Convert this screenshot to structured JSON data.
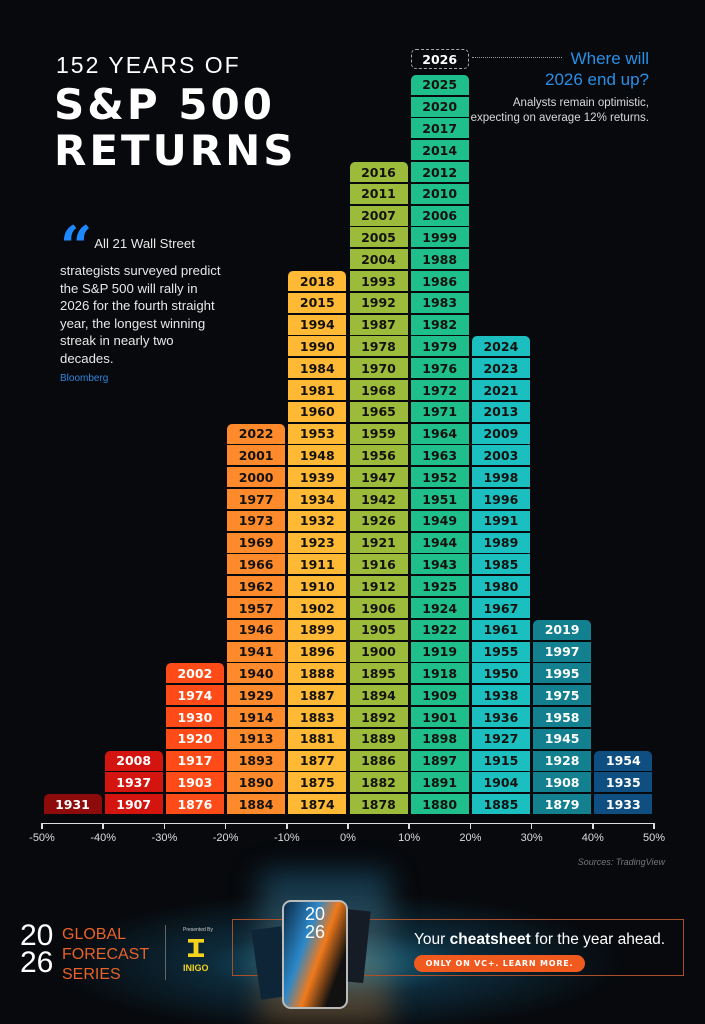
{
  "title": {
    "line1": "152 YEARS OF",
    "line2": "S&P 500",
    "line3": "RETURNS"
  },
  "quote": {
    "icon": "quote-icon",
    "text": "All 21 Wall Street strategists surveyed predict the S&P 500 will rally in 2026 for the fourth straight year, the longest winning streak in nearly two decades.",
    "source": "Bloomberg"
  },
  "callout": {
    "heading": "Where will 2026 end up?",
    "text": "Analysts remain optimistic, expecting on average 12% returns."
  },
  "sources": "Sources: TradingView",
  "chart_data": {
    "type": "histogram",
    "title": "152 YEARS OF S&P 500 RETURNS",
    "x_tick_labels": [
      "-50%",
      "-40%",
      "-30%",
      "-20%",
      "-10%",
      "0%",
      "10%",
      "20%",
      "30%",
      "40%",
      "50%"
    ],
    "xlim": [
      -50,
      50
    ],
    "grid": false,
    "projected": {
      "year": "2026",
      "bin": [
        10,
        20
      ]
    },
    "bins": [
      {
        "range": [
          -50,
          -40
        ],
        "color": "#8e0b0b",
        "text_color": "#ffffff",
        "years": [
          "1931"
        ]
      },
      {
        "range": [
          -40,
          -30
        ],
        "color": "#d3140f",
        "text_color": "#ffffff",
        "years": [
          "2008",
          "1937",
          "1907"
        ]
      },
      {
        "range": [
          -30,
          -20
        ],
        "color": "#ff4b17",
        "text_color": "#ffffff",
        "years": [
          "2002",
          "1974",
          "1930",
          "1920",
          "1917",
          "1903",
          "1876"
        ]
      },
      {
        "range": [
          -20,
          -10
        ],
        "color": "#ff8a2b",
        "text_color": "#14120e",
        "years": [
          "2022",
          "2001",
          "2000",
          "1977",
          "1973",
          "1969",
          "1966",
          "1962",
          "1957",
          "1946",
          "1941",
          "1940",
          "1929",
          "1914",
          "1913",
          "1893",
          "1890",
          "1884"
        ]
      },
      {
        "range": [
          -10,
          0
        ],
        "color": "#ffb934",
        "text_color": "#14120e",
        "years": [
          "2018",
          "2015",
          "1994",
          "1990",
          "1984",
          "1981",
          "1960",
          "1953",
          "1948",
          "1939",
          "1934",
          "1932",
          "1923",
          "1911",
          "1910",
          "1902",
          "1899",
          "1896",
          "1888",
          "1887",
          "1883",
          "1881",
          "1877",
          "1875",
          "1874"
        ]
      },
      {
        "range": [
          0,
          10
        ],
        "color": "#9dbb3b",
        "text_color": "#14120e",
        "years": [
          "2016",
          "2011",
          "2007",
          "2005",
          "2004",
          "1993",
          "1992",
          "1987",
          "1978",
          "1970",
          "1968",
          "1965",
          "1959",
          "1956",
          "1947",
          "1942",
          "1926",
          "1921",
          "1916",
          "1912",
          "1906",
          "1905",
          "1900",
          "1895",
          "1894",
          "1892",
          "1889",
          "1886",
          "1882",
          "1878"
        ]
      },
      {
        "range": [
          10,
          20
        ],
        "color": "#1fbf8b",
        "text_color": "#14120e",
        "years": [
          "2025",
          "2020",
          "2017",
          "2014",
          "2012",
          "2010",
          "2006",
          "1999",
          "1988",
          "1986",
          "1983",
          "1982",
          "1979",
          "1976",
          "1972",
          "1971",
          "1964",
          "1963",
          "1952",
          "1951",
          "1949",
          "1944",
          "1943",
          "1925",
          "1924",
          "1922",
          "1919",
          "1918",
          "1909",
          "1901",
          "1898",
          "1897",
          "1891",
          "1880"
        ]
      },
      {
        "range": [
          20,
          30
        ],
        "color": "#1cbfc0",
        "text_color": "#14120e",
        "years": [
          "2024",
          "2023",
          "2021",
          "2013",
          "2009",
          "2003",
          "1998",
          "1996",
          "1991",
          "1989",
          "1985",
          "1980",
          "1967",
          "1961",
          "1955",
          "1950",
          "1938",
          "1936",
          "1927",
          "1915",
          "1904",
          "1885"
        ]
      },
      {
        "range": [
          30,
          40
        ],
        "color": "#13808f",
        "text_color": "#ffffff",
        "years": [
          "2019",
          "1997",
          "1995",
          "1975",
          "1958",
          "1945",
          "1928",
          "1908",
          "1879"
        ]
      },
      {
        "range": [
          40,
          50
        ],
        "color": "#0f4e80",
        "text_color": "#ffffff",
        "years": [
          "1954",
          "1935",
          "1933"
        ]
      }
    ]
  },
  "footer": {
    "logo_year_top": "20",
    "logo_year_bottom": "26",
    "series": [
      "GLOBAL",
      "FORECAST",
      "SERIES"
    ],
    "presented_by": "Presented By",
    "sponsor": "INIGO",
    "phone_text_top": "20",
    "phone_text_bottom": "26",
    "cta_pre": "Your ",
    "cta_bold": "cheatsheet",
    "cta_post": " for the year ahead.",
    "cta_button": "ONLY ON VC+. LEARN MORE."
  }
}
